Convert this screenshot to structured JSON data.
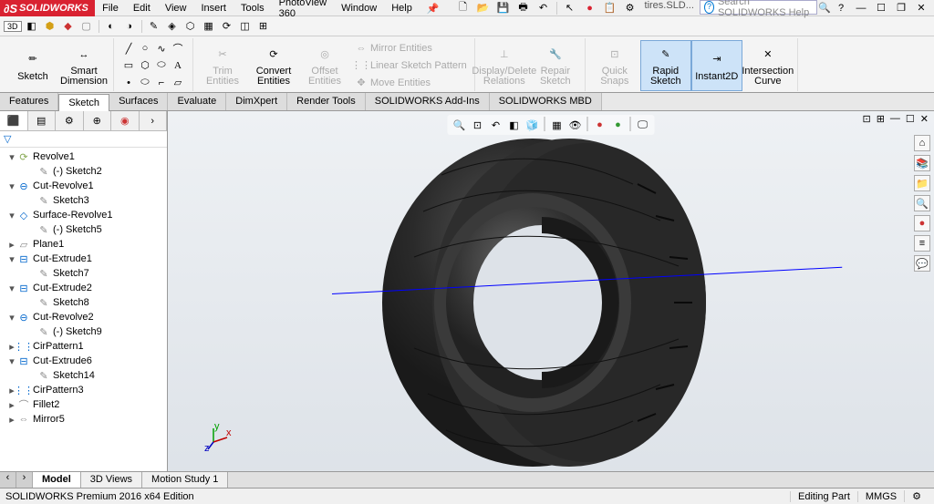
{
  "app_logo": "SOLIDWORKS",
  "menu": {
    "file": "File",
    "edit": "Edit",
    "view": "View",
    "insert": "Insert",
    "tools": "Tools",
    "photoview": "PhotoView 360",
    "window": "Window",
    "help": "Help"
  },
  "doc_name": "tires.SLD...",
  "search_placeholder": "Search SOLIDWORKS Help",
  "ribbon": {
    "sketch": "Sketch",
    "smart_dimension": "Smart Dimension",
    "trim": "Trim Entities",
    "convert": "Convert Entities",
    "offset": "Offset Entities",
    "mirror": "Mirror Entities",
    "linear": "Linear Sketch Pattern",
    "move": "Move Entities",
    "display": "Display/Delete Relations",
    "repair": "Repair Sketch",
    "quick": "Quick Snaps",
    "rapid": "Rapid Sketch",
    "instant": "Instant2D",
    "intersection": "Intersection Curve"
  },
  "cmd_tabs": [
    "Features",
    "Sketch",
    "Surfaces",
    "Evaluate",
    "DimXpert",
    "Render Tools",
    "SOLIDWORKS Add-Ins",
    "SOLIDWORKS MBD"
  ],
  "cmd_active": 1,
  "feature_tree": [
    {
      "type": "feat",
      "label": "Revolve1",
      "open": true,
      "icon": "revolve"
    },
    {
      "type": "sketch",
      "label": "(-) Sketch2",
      "child": true
    },
    {
      "type": "feat",
      "label": "Cut-Revolve1",
      "open": true,
      "icon": "cut-revolve"
    },
    {
      "type": "sketch",
      "label": "Sketch3",
      "child": true
    },
    {
      "type": "feat",
      "label": "Surface-Revolve1",
      "open": true,
      "icon": "surface"
    },
    {
      "type": "sketch",
      "label": "(-) Sketch5",
      "child": true
    },
    {
      "type": "plane",
      "label": "Plane1",
      "icon": "plane"
    },
    {
      "type": "feat",
      "label": "Cut-Extrude1",
      "open": true,
      "icon": "cut-extrude"
    },
    {
      "type": "sketch",
      "label": "Sketch7",
      "child": true
    },
    {
      "type": "feat",
      "label": "Cut-Extrude2",
      "open": true,
      "icon": "cut-extrude"
    },
    {
      "type": "sketch",
      "label": "Sketch8",
      "child": true
    },
    {
      "type": "feat",
      "label": "Cut-Revolve2",
      "open": true,
      "icon": "cut-revolve"
    },
    {
      "type": "sketch",
      "label": "(-) Sketch9",
      "child": true
    },
    {
      "type": "pattern",
      "label": "CirPattern1",
      "icon": "pattern"
    },
    {
      "type": "feat",
      "label": "Cut-Extrude6",
      "open": true,
      "icon": "cut-extrude"
    },
    {
      "type": "sketch",
      "label": "Sketch14",
      "child": true
    },
    {
      "type": "pattern",
      "label": "CirPattern3",
      "icon": "pattern"
    },
    {
      "type": "fillet",
      "label": "Fillet2",
      "icon": "fillet"
    },
    {
      "type": "mirror",
      "label": "Mirror5",
      "icon": "mirror"
    }
  ],
  "bottom_tabs": [
    "Model",
    "3D Views",
    "Motion Study 1"
  ],
  "bottom_active": 0,
  "status": {
    "edition": "SOLIDWORKS Premium 2016 x64 Edition",
    "mode": "Editing Part",
    "units": "MMGS"
  },
  "colors": {
    "accent_red": "#d92231",
    "active_tab": "#cde3f8",
    "axis_blue": "#0000ff",
    "tire_dark": "#2a2a2a",
    "tire_side": "#3a3a3a"
  }
}
